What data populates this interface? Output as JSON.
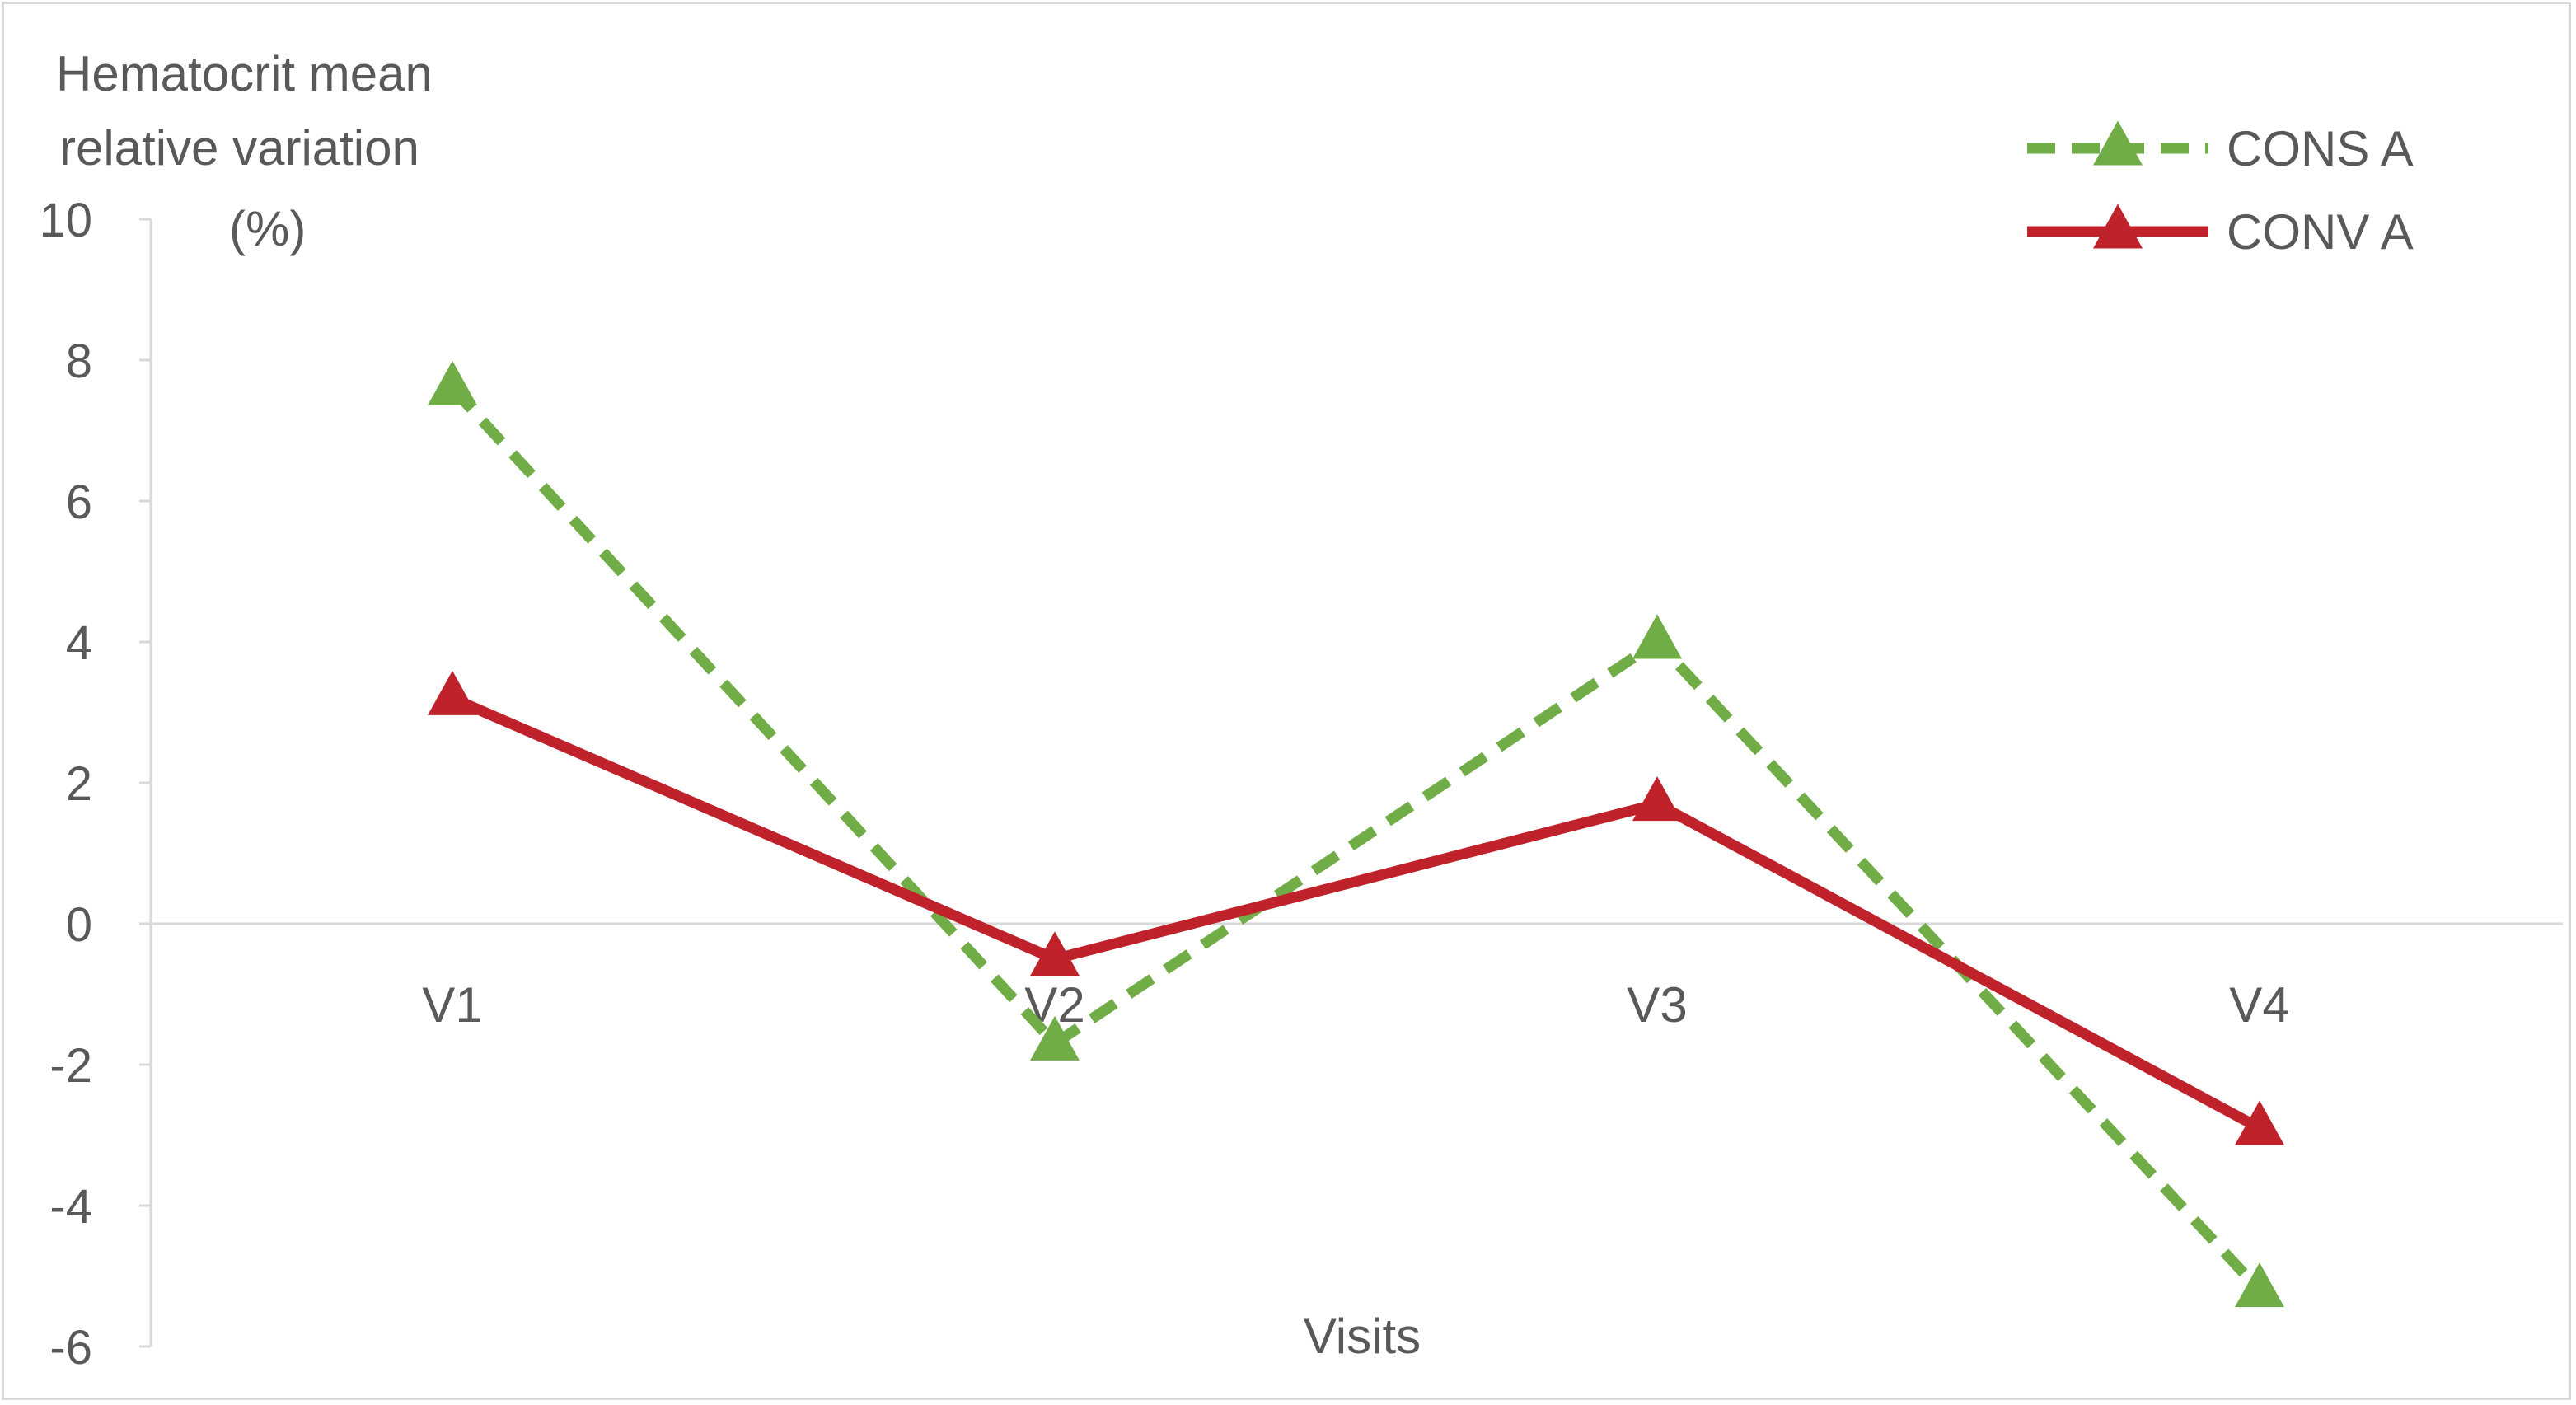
{
  "chart_data": {
    "type": "line",
    "categories": [
      "V1",
      "V2",
      "V3",
      "V4"
    ],
    "series": [
      {
        "name": "CONS A",
        "values": [
          7.6,
          -1.7,
          4.0,
          -5.2
        ],
        "color": "#70ad47",
        "style": "dashed",
        "marker": "triangle"
      },
      {
        "name": "CONV A",
        "values": [
          3.2,
          -0.5,
          1.7,
          -2.9
        ],
        "color": "#c0222c",
        "style": "solid",
        "marker": "triangle"
      }
    ],
    "ylabel_lines": [
      "Hematocrit mean",
      "relative variation",
      "(%)"
    ],
    "xlabel": "Visits",
    "ylim": [
      -6,
      10
    ],
    "yticks": [
      "10",
      "8",
      "6",
      "4",
      "2",
      "0",
      "-2",
      "-4",
      "-6"
    ],
    "legend_position": "top-right",
    "grid": false
  }
}
